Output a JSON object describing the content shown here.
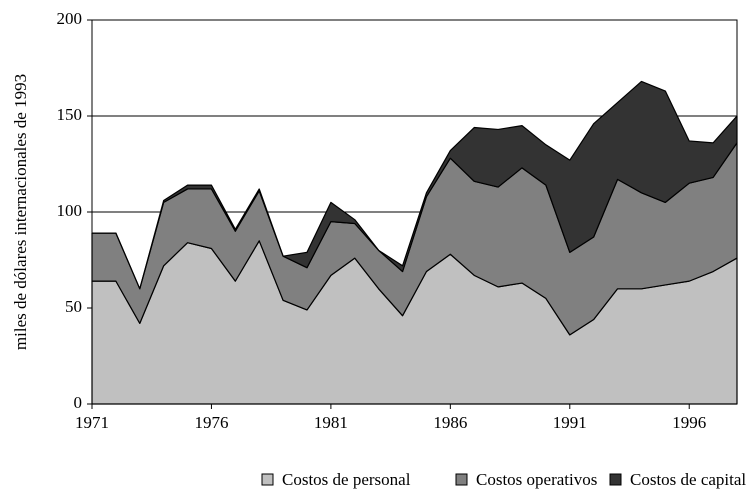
{
  "chart_data": {
    "type": "stacked_area",
    "y_label": "miles de dólares internacionales  de 1993",
    "x": [
      1971,
      1972,
      1973,
      1974,
      1975,
      1976,
      1977,
      1978,
      1979,
      1980,
      1981,
      1982,
      1983,
      1984,
      1985,
      1986,
      1987,
      1988,
      1989,
      1990,
      1991,
      1992,
      1993,
      1994,
      1995,
      1996,
      1997,
      1998
    ],
    "series": [
      {
        "name": "Costos de personal",
        "color": "#c0c0c0",
        "values": [
          64,
          64,
          42,
          72,
          84,
          81,
          64,
          85,
          54,
          49,
          67,
          76,
          60,
          46,
          69,
          78,
          67,
          61,
          63,
          55,
          36,
          44,
          60,
          60,
          62,
          64,
          69,
          76
        ]
      },
      {
        "name": "Costos operativos",
        "color": "#808080",
        "values": [
          25,
          25,
          18,
          33,
          28,
          31,
          26,
          26,
          23,
          22,
          28,
          18,
          20,
          23,
          39,
          50,
          49,
          52,
          60,
          59,
          43,
          43,
          57,
          50,
          43,
          51,
          49,
          60
        ]
      },
      {
        "name": "Costos de capital",
        "color": "#333333",
        "values": [
          0,
          0,
          0,
          1,
          2,
          2,
          1,
          1,
          0,
          8,
          10,
          2,
          0,
          3,
          2,
          4,
          28,
          30,
          22,
          21,
          48,
          59,
          40,
          58,
          58,
          22,
          18,
          14
        ]
      }
    ],
    "xlim": [
      1971,
      1998
    ],
    "xticks": [
      1971,
      1976,
      1981,
      1986,
      1991,
      1996
    ],
    "ylim": [
      0,
      200
    ],
    "yticks": [
      0,
      50,
      100,
      150,
      200
    ],
    "grid": true,
    "legend": "bottom"
  }
}
